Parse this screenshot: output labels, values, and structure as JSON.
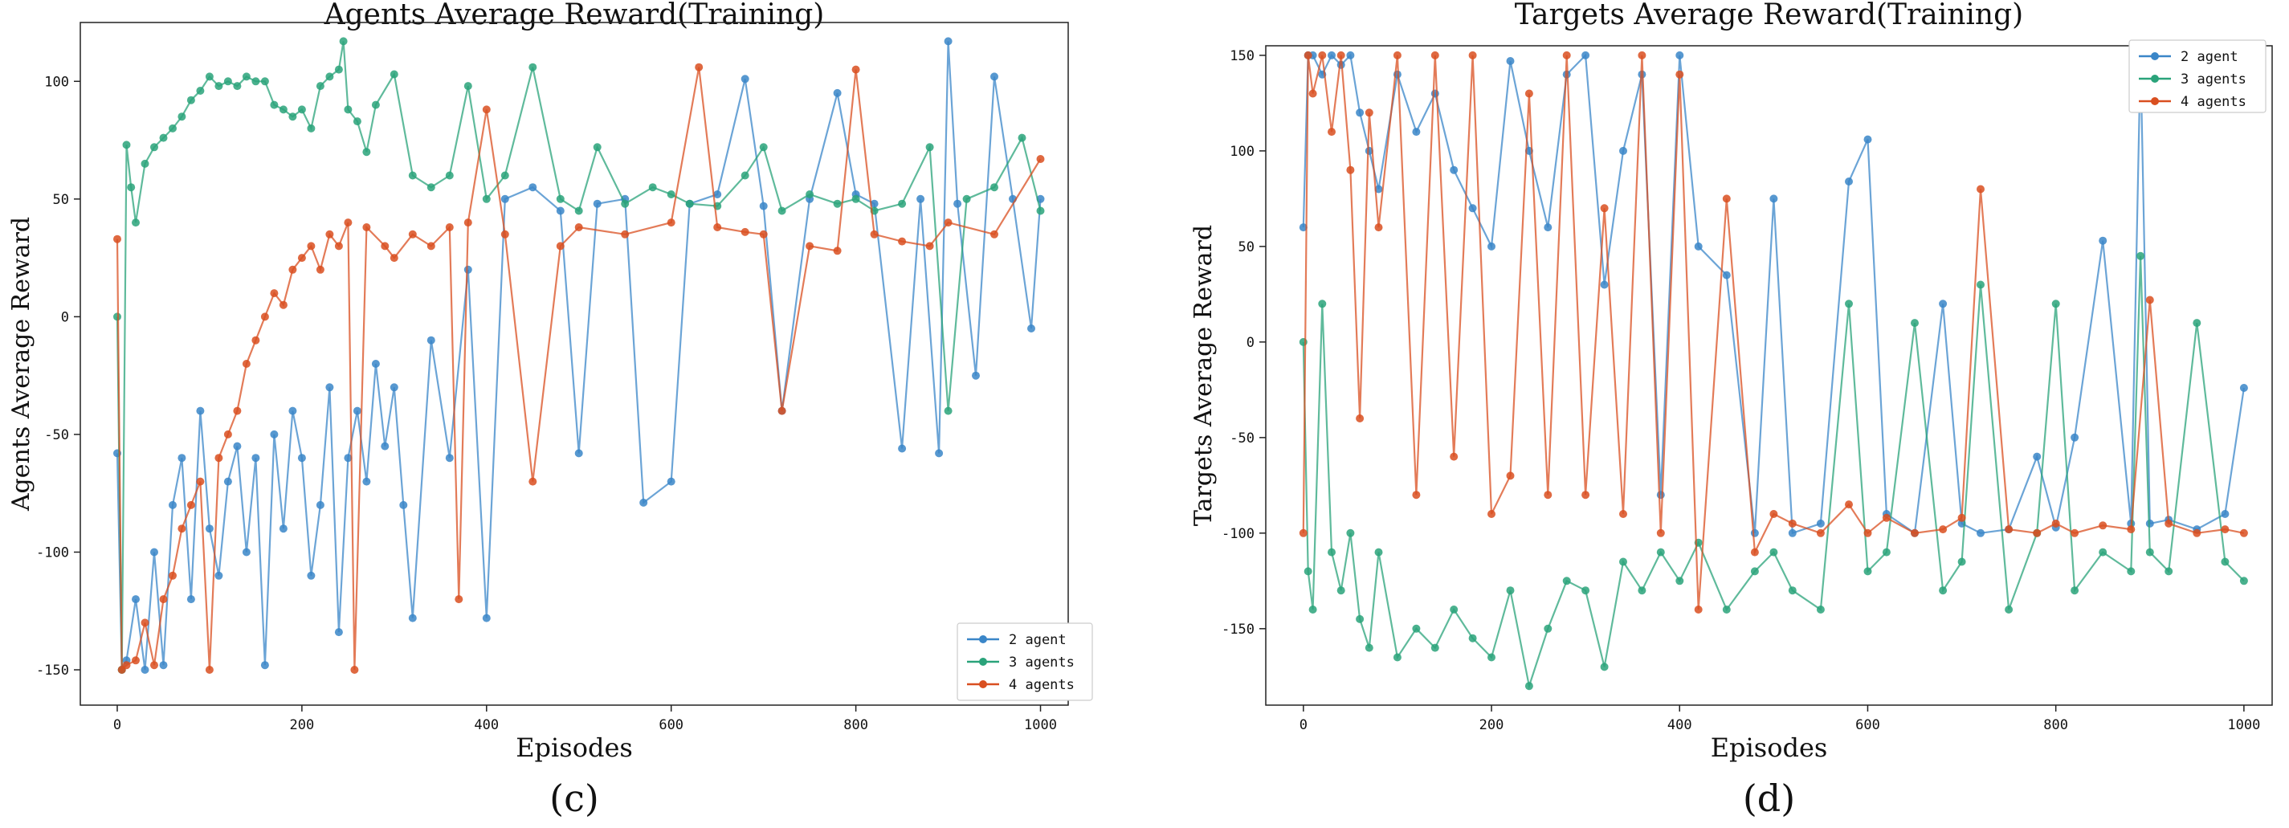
{
  "chart_data": [
    {
      "type": "line",
      "panel_label": "(c)",
      "title": "Agents Average Reward(Training)",
      "xlabel": "Episodes",
      "ylabel": "Agents Average Reward",
      "xlim": [
        -40,
        1030
      ],
      "ylim": [
        -165,
        125
      ],
      "xticks": [
        0,
        200,
        400,
        600,
        800,
        1000
      ],
      "yticks": [
        -150,
        -100,
        -50,
        0,
        50,
        100
      ],
      "grid": false,
      "legend_position": "lower-right",
      "series": [
        {
          "name": "2 agent",
          "color": "#3a86c8",
          "x": [
            0,
            5,
            10,
            20,
            30,
            40,
            50,
            60,
            70,
            80,
            90,
            100,
            110,
            120,
            130,
            140,
            150,
            160,
            170,
            180,
            190,
            200,
            210,
            220,
            230,
            240,
            250,
            260,
            270,
            280,
            290,
            300,
            310,
            320,
            340,
            360,
            380,
            400,
            420,
            450,
            480,
            500,
            520,
            550,
            570,
            600,
            620,
            650,
            680,
            700,
            720,
            750,
            780,
            800,
            820,
            850,
            870,
            890,
            900,
            910,
            930,
            950,
            970,
            990,
            1000
          ],
          "y": [
            -58,
            -150,
            -146,
            -120,
            -150,
            -100,
            -148,
            -80,
            -60,
            -120,
            -40,
            -90,
            -110,
            -70,
            -55,
            -100,
            -60,
            -148,
            -50,
            -90,
            -40,
            -60,
            -110,
            -80,
            -30,
            -134,
            -60,
            -40,
            -70,
            -20,
            -55,
            -30,
            -80,
            -128,
            -10,
            -60,
            20,
            -128,
            50,
            55,
            45,
            -58,
            48,
            50,
            -79,
            -70,
            48,
            52,
            101,
            47,
            -40,
            50,
            95,
            52,
            48,
            -56,
            50,
            -58,
            117,
            48,
            -25,
            102,
            50,
            -5,
            50
          ]
        },
        {
          "name": "3 agents",
          "color": "#2aa37a",
          "x": [
            0,
            5,
            10,
            15,
            20,
            30,
            40,
            50,
            60,
            70,
            80,
            90,
            100,
            110,
            120,
            130,
            140,
            150,
            160,
            170,
            180,
            190,
            200,
            210,
            220,
            230,
            240,
            245,
            250,
            260,
            270,
            280,
            300,
            320,
            340,
            360,
            380,
            400,
            420,
            450,
            480,
            500,
            520,
            550,
            580,
            600,
            620,
            650,
            680,
            700,
            720,
            750,
            780,
            800,
            820,
            850,
            880,
            900,
            920,
            950,
            980,
            1000
          ],
          "y": [
            0,
            -150,
            73,
            55,
            40,
            65,
            72,
            76,
            80,
            85,
            92,
            96,
            102,
            98,
            100,
            98,
            102,
            100,
            100,
            90,
            88,
            85,
            88,
            80,
            98,
            102,
            105,
            117,
            88,
            83,
            70,
            90,
            103,
            60,
            55,
            60,
            98,
            50,
            60,
            106,
            50,
            45,
            72,
            48,
            55,
            52,
            48,
            47,
            60,
            72,
            45,
            52,
            48,
            50,
            45,
            48,
            72,
            -40,
            50,
            55,
            76,
            45
          ]
        },
        {
          "name": "4 agents",
          "color": "#d94f20",
          "x": [
            0,
            5,
            10,
            20,
            30,
            40,
            50,
            60,
            70,
            80,
            90,
            100,
            110,
            120,
            130,
            140,
            150,
            160,
            170,
            180,
            190,
            200,
            210,
            220,
            230,
            240,
            250,
            257,
            270,
            290,
            300,
            320,
            340,
            360,
            370,
            380,
            400,
            420,
            450,
            480,
            500,
            550,
            600,
            630,
            650,
            680,
            700,
            720,
            750,
            780,
            800,
            820,
            850,
            880,
            900,
            950,
            1000
          ],
          "y": [
            33,
            -150,
            -148,
            -146,
            -130,
            -148,
            -120,
            -110,
            -90,
            -80,
            -70,
            -150,
            -60,
            -50,
            -40,
            -20,
            -10,
            0,
            10,
            5,
            20,
            25,
            30,
            20,
            35,
            30,
            40,
            -150,
            38,
            30,
            25,
            35,
            30,
            38,
            -120,
            40,
            88,
            35,
            -70,
            30,
            38,
            35,
            40,
            106,
            38,
            36,
            35,
            -40,
            30,
            28,
            105,
            35,
            32,
            30,
            40,
            35,
            67
          ]
        }
      ]
    },
    {
      "type": "line",
      "panel_label": "(d)",
      "title": "Targets Average Reward(Training)",
      "xlabel": "Episodes",
      "ylabel": "Targets Average Reward",
      "xlim": [
        -40,
        1030
      ],
      "ylim": [
        -190,
        155
      ],
      "xticks": [
        0,
        200,
        400,
        600,
        800,
        1000
      ],
      "yticks": [
        -150,
        -100,
        -50,
        0,
        50,
        100,
        150
      ],
      "grid": false,
      "legend_position": "upper-right",
      "series": [
        {
          "name": "2 agent",
          "color": "#3a86c8",
          "x": [
            0,
            5,
            10,
            20,
            30,
            40,
            50,
            60,
            70,
            80,
            100,
            120,
            140,
            160,
            180,
            200,
            220,
            240,
            260,
            280,
            300,
            320,
            340,
            360,
            380,
            400,
            420,
            450,
            480,
            500,
            520,
            550,
            580,
            600,
            620,
            650,
            680,
            700,
            720,
            750,
            780,
            800,
            820,
            850,
            880,
            890,
            900,
            920,
            950,
            980,
            1000
          ],
          "y": [
            60,
            150,
            150,
            140,
            150,
            145,
            150,
            120,
            100,
            80,
            140,
            110,
            130,
            90,
            70,
            50,
            147,
            100,
            60,
            140,
            150,
            30,
            100,
            140,
            -80,
            150,
            50,
            35,
            -100,
            75,
            -100,
            -95,
            84,
            106,
            -90,
            -100,
            20,
            -95,
            -100,
            -98,
            -60,
            -97,
            -50,
            53,
            -95,
            150,
            -95,
            -93,
            -98,
            -90,
            -24
          ]
        },
        {
          "name": "3 agents",
          "color": "#2aa37a",
          "x": [
            0,
            5,
            10,
            20,
            30,
            40,
            50,
            60,
            70,
            80,
            100,
            120,
            140,
            160,
            180,
            200,
            220,
            240,
            260,
            280,
            300,
            320,
            340,
            360,
            380,
            400,
            420,
            450,
            480,
            500,
            520,
            550,
            580,
            600,
            620,
            650,
            680,
            700,
            720,
            750,
            780,
            800,
            820,
            850,
            880,
            890,
            900,
            920,
            950,
            980,
            1000
          ],
          "y": [
            0,
            -120,
            -140,
            20,
            -110,
            -130,
            -100,
            -145,
            -160,
            -110,
            -165,
            -150,
            -160,
            -140,
            -155,
            -165,
            -130,
            -180,
            -150,
            -125,
            -130,
            -170,
            -115,
            -130,
            -110,
            -125,
            -105,
            -140,
            -120,
            -110,
            -130,
            -140,
            20,
            -120,
            -110,
            10,
            -130,
            -115,
            30,
            -140,
            -100,
            20,
            -130,
            -110,
            -120,
            45,
            -110,
            -120,
            10,
            -115,
            -125
          ]
        },
        {
          "name": "4 agents",
          "color": "#d94f20",
          "x": [
            0,
            5,
            10,
            20,
            30,
            40,
            50,
            60,
            70,
            80,
            100,
            120,
            140,
            160,
            180,
            200,
            220,
            240,
            260,
            280,
            300,
            320,
            340,
            360,
            380,
            400,
            420,
            450,
            480,
            500,
            520,
            550,
            580,
            600,
            620,
            650,
            680,
            700,
            720,
            750,
            780,
            800,
            820,
            850,
            880,
            900,
            920,
            950,
            980,
            1000
          ],
          "y": [
            -100,
            150,
            130,
            150,
            110,
            150,
            90,
            -40,
            120,
            60,
            150,
            -80,
            150,
            -60,
            150,
            -90,
            -70,
            130,
            -80,
            150,
            -80,
            70,
            -90,
            150,
            -100,
            140,
            -140,
            75,
            -110,
            -90,
            -95,
            -100,
            -85,
            -100,
            -92,
            -100,
            -98,
            -92,
            80,
            -98,
            -100,
            -95,
            -100,
            -96,
            -98,
            22,
            -95,
            -100,
            -98,
            -100
          ]
        }
      ]
    }
  ]
}
